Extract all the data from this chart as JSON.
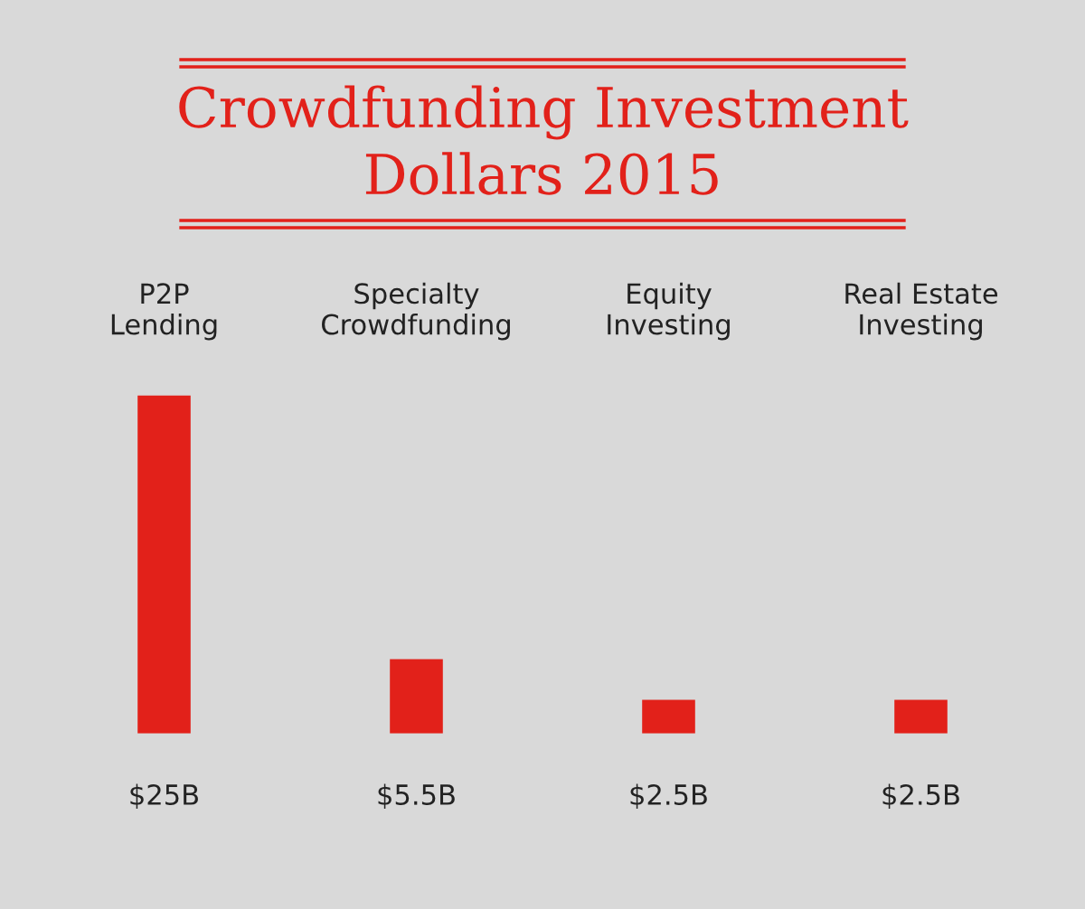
{
  "chart_data": {
    "type": "bar",
    "title": "Crowdfunding Investment\nDollars 2015",
    "categories": [
      "P2P\nLending",
      "Specialty\nCrowdfunding",
      "Equity\nInvesting",
      "Real Estate\nInvesting"
    ],
    "values": [
      25,
      5.5,
      2.5,
      2.5
    ],
    "color": "#e2211a",
    "value_labels": [
      "$25B",
      "$5.5B",
      "$2.5B",
      "$2.5B"
    ],
    "grid": false,
    "legend": false
  }
}
